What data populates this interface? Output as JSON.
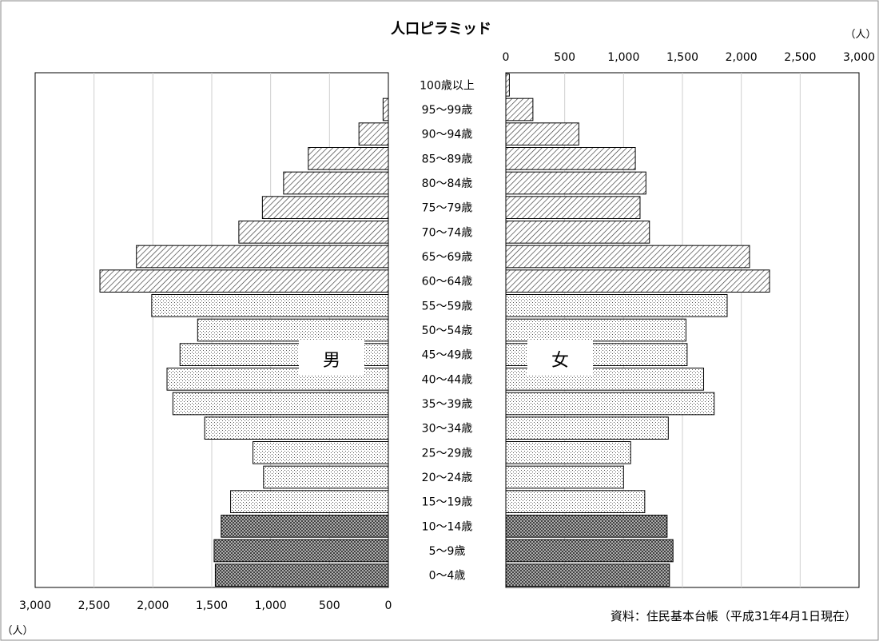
{
  "chart_data": {
    "type": "bar",
    "title": "人口ピラミッド",
    "unit_label": "（人）",
    "source": "資料：住民基本台帳（平成31年4月1日現在）",
    "left_label": "男",
    "right_label": "女",
    "x_ticks_left": [
      "3,000",
      "2,500",
      "2,000",
      "1,500",
      "1,000",
      "500",
      "0"
    ],
    "x_ticks_right": [
      "0",
      "500",
      "1,000",
      "1,500",
      "2,000",
      "2,500",
      "3,000"
    ],
    "xlim": [
      0,
      3000
    ],
    "grid": true,
    "categories": [
      "100歳以上",
      "95～99歳",
      "90～94歳",
      "85～89歳",
      "80～84歳",
      "75～79歳",
      "70～74歳",
      "65～69歳",
      "60～64歳",
      "55～59歳",
      "50～54歳",
      "45～49歳",
      "40～44歳",
      "35～39歳",
      "30～34歳",
      "25～29歳",
      "20～24歳",
      "15～19歳",
      "10～14歳",
      "5～9歳",
      "0～4歳"
    ],
    "series": [
      {
        "name": "男",
        "values": [
          0,
          45,
          250,
          680,
          890,
          1070,
          1270,
          2140,
          2450,
          2010,
          1620,
          1770,
          1880,
          1830,
          1560,
          1150,
          1060,
          1340,
          1420,
          1480,
          1470
        ]
      },
      {
        "name": "女",
        "values": [
          30,
          230,
          620,
          1100,
          1190,
          1140,
          1220,
          2070,
          2240,
          1880,
          1530,
          1540,
          1680,
          1770,
          1380,
          1060,
          1000,
          1180,
          1370,
          1420,
          1390
        ]
      }
    ],
    "fill_groups": [
      "old",
      "old",
      "old",
      "old",
      "old",
      "old",
      "old",
      "old",
      "old",
      "mid",
      "mid",
      "mid",
      "mid",
      "mid",
      "mid",
      "mid",
      "mid",
      "mid",
      "young",
      "young",
      "young"
    ]
  }
}
